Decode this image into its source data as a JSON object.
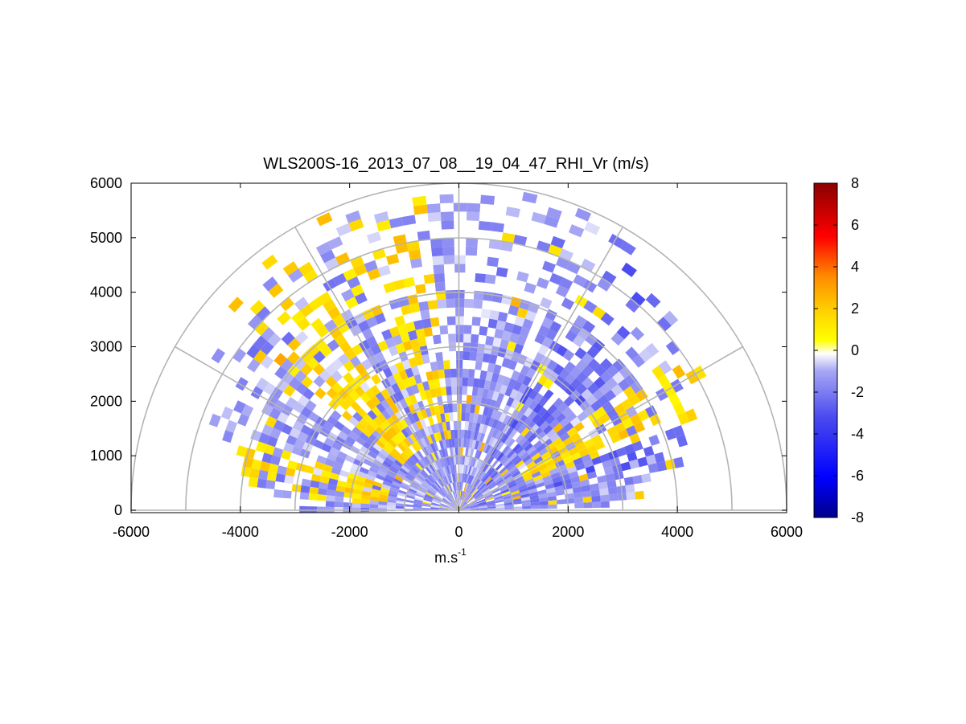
{
  "chart_data": {
    "type": "heatmap",
    "subtype": "polar RHI scan (range-height indicator)",
    "title": "WLS200S-16_2013_07_08__19_04_47_RHI_Vr (m/s)",
    "xlabel": "m.s",
    "xlabel_superscript": "-1",
    "ylabel": "",
    "xlim": [
      -6000,
      6000
    ],
    "ylim": [
      0,
      6000
    ],
    "x_ticks": [
      "-6000",
      "-4000",
      "-2000",
      "0",
      "2000",
      "4000",
      "6000"
    ],
    "y_ticks": [
      "0",
      "1000",
      "2000",
      "3000",
      "4000",
      "5000",
      "6000"
    ],
    "polar_grid": {
      "range_rings": [
        1000,
        2000,
        3000,
        4000,
        5000,
        6000
      ],
      "spokes_deg": [
        0,
        30,
        60,
        90,
        120,
        150,
        180
      ]
    },
    "colorbar": {
      "label": "",
      "range": [
        -8,
        8
      ],
      "ticks": [
        "-8",
        "-6",
        "-4",
        "-2",
        "0",
        "2",
        "4",
        "6",
        "8"
      ],
      "colormap": [
        "#00008b",
        "#0000ff",
        "#4a4af0",
        "#8a8af2",
        "#ffffff",
        "#ffff00",
        "#ffd000",
        "#ff8c00",
        "#ff0000",
        "#8b0000"
      ]
    },
    "velocity_field": {
      "description": "Radial velocity in m/s per range gate, mostly -2 to 0 m/s with positive (+1 to +3 m/s) bands",
      "typical_negative_value": -1.5,
      "typical_positive_value": 1.5,
      "positive_sectors_deg": [
        [
          95,
          115
        ],
        [
          120,
          140
        ],
        [
          160,
          175
        ],
        [
          20,
          35
        ]
      ],
      "strong_negative_sectors_deg": [
        [
          10,
          25
        ],
        [
          40,
          60
        ]
      ]
    }
  }
}
